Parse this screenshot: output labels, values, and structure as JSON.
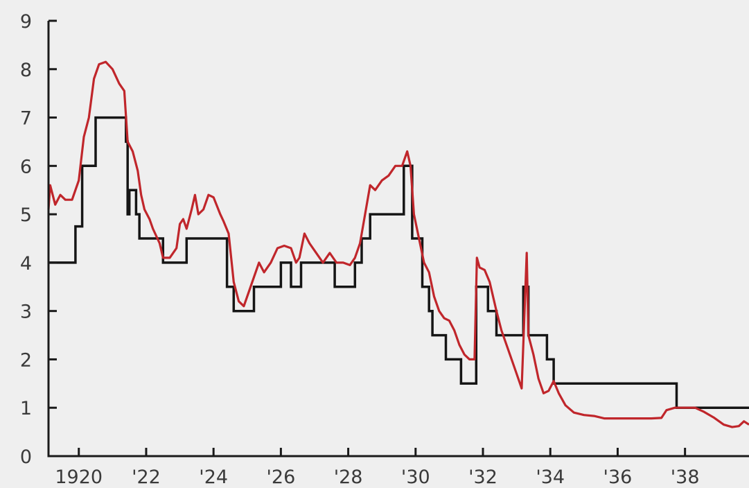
{
  "colors": {
    "background": "#efefef",
    "axis": "#1a1a1a",
    "text": "#3a3a3a",
    "series_black": "#151515",
    "series_red": "#c0262b"
  },
  "chart_data": {
    "type": "line",
    "title": "",
    "xlabel": "",
    "ylabel": "",
    "xlim": [
      1919.1,
      1939.9
    ],
    "ylim": [
      0,
      9
    ],
    "grid": false,
    "legend": "none",
    "x_tick_labels": [
      {
        "x": 1920,
        "label": "1920"
      },
      {
        "x": 1922,
        "label": "'22"
      },
      {
        "x": 1924,
        "label": "'24"
      },
      {
        "x": 1926,
        "label": "'26"
      },
      {
        "x": 1928,
        "label": "'28"
      },
      {
        "x": 1930,
        "label": "'30"
      },
      {
        "x": 1932,
        "label": "'32"
      },
      {
        "x": 1934,
        "label": "'34"
      },
      {
        "x": 1936,
        "label": "'36"
      },
      {
        "x": 1938,
        "label": "'38"
      }
    ],
    "y_tick_labels": [
      {
        "y": 0,
        "label": "0"
      },
      {
        "y": 1,
        "label": "1"
      },
      {
        "y": 2,
        "label": "2"
      },
      {
        "y": 3,
        "label": "3"
      },
      {
        "y": 4,
        "label": "4"
      },
      {
        "y": 5,
        "label": "5"
      },
      {
        "y": 6,
        "label": "6"
      },
      {
        "y": 7,
        "label": "7"
      },
      {
        "y": 8,
        "label": "8"
      },
      {
        "y": 9,
        "label": "9"
      }
    ],
    "series": [
      {
        "color": "#151515",
        "style": "step",
        "points": [
          [
            1919.1,
            4.0
          ],
          [
            1919.9,
            4.0
          ],
          [
            1919.9,
            4.75
          ],
          [
            1920.1,
            4.75
          ],
          [
            1920.1,
            6.0
          ],
          [
            1920.5,
            6.0
          ],
          [
            1920.5,
            7.0
          ],
          [
            1921.4,
            7.0
          ],
          [
            1921.4,
            6.5
          ],
          [
            1921.45,
            6.5
          ],
          [
            1921.45,
            5.0
          ],
          [
            1921.5,
            5.0
          ],
          [
            1921.5,
            5.5
          ],
          [
            1921.7,
            5.5
          ],
          [
            1921.7,
            5.0
          ],
          [
            1921.8,
            5.0
          ],
          [
            1921.8,
            4.5
          ],
          [
            1922.5,
            4.5
          ],
          [
            1922.5,
            4.0
          ],
          [
            1923.2,
            4.0
          ],
          [
            1923.2,
            4.5
          ],
          [
            1924.4,
            4.5
          ],
          [
            1924.4,
            3.5
          ],
          [
            1924.6,
            3.5
          ],
          [
            1924.6,
            3.0
          ],
          [
            1925.2,
            3.0
          ],
          [
            1925.2,
            3.5
          ],
          [
            1926.0,
            3.5
          ],
          [
            1926.0,
            4.0
          ],
          [
            1926.3,
            4.0
          ],
          [
            1926.3,
            3.5
          ],
          [
            1926.6,
            3.5
          ],
          [
            1926.6,
            4.0
          ],
          [
            1927.6,
            4.0
          ],
          [
            1927.6,
            3.5
          ],
          [
            1928.2,
            3.5
          ],
          [
            1928.2,
            4.0
          ],
          [
            1928.4,
            4.0
          ],
          [
            1928.4,
            4.5
          ],
          [
            1928.65,
            4.5
          ],
          [
            1928.65,
            5.0
          ],
          [
            1929.65,
            5.0
          ],
          [
            1929.65,
            6.0
          ],
          [
            1929.9,
            6.0
          ],
          [
            1929.9,
            4.5
          ],
          [
            1930.2,
            4.5
          ],
          [
            1930.2,
            3.5
          ],
          [
            1930.4,
            3.5
          ],
          [
            1930.4,
            3.0
          ],
          [
            1930.5,
            3.0
          ],
          [
            1930.5,
            2.5
          ],
          [
            1930.9,
            2.5
          ],
          [
            1930.9,
            2.0
          ],
          [
            1931.35,
            2.0
          ],
          [
            1931.35,
            1.5
          ],
          [
            1931.8,
            1.5
          ],
          [
            1931.8,
            3.5
          ],
          [
            1932.15,
            3.5
          ],
          [
            1932.15,
            3.0
          ],
          [
            1932.4,
            3.0
          ],
          [
            1932.4,
            2.5
          ],
          [
            1933.2,
            2.5
          ],
          [
            1933.2,
            3.5
          ],
          [
            1933.35,
            3.5
          ],
          [
            1933.35,
            2.5
          ],
          [
            1933.9,
            2.5
          ],
          [
            1933.9,
            2.0
          ],
          [
            1934.1,
            2.0
          ],
          [
            1934.1,
            1.5
          ],
          [
            1937.75,
            1.5
          ],
          [
            1937.75,
            1.0
          ],
          [
            1939.9,
            1.0
          ]
        ]
      },
      {
        "color": "#c0262b",
        "style": "line",
        "points": [
          [
            1919.1,
            5.1
          ],
          [
            1919.15,
            5.6
          ],
          [
            1919.3,
            5.2
          ],
          [
            1919.45,
            5.4
          ],
          [
            1919.6,
            5.3
          ],
          [
            1919.8,
            5.3
          ],
          [
            1920.0,
            5.7
          ],
          [
            1920.15,
            6.6
          ],
          [
            1920.3,
            7.0
          ],
          [
            1920.45,
            7.8
          ],
          [
            1920.6,
            8.1
          ],
          [
            1920.8,
            8.15
          ],
          [
            1921.0,
            8.0
          ],
          [
            1921.2,
            7.7
          ],
          [
            1921.35,
            7.55
          ],
          [
            1921.45,
            6.5
          ],
          [
            1921.6,
            6.3
          ],
          [
            1921.75,
            5.9
          ],
          [
            1921.85,
            5.4
          ],
          [
            1921.95,
            5.1
          ],
          [
            1922.1,
            4.9
          ],
          [
            1922.2,
            4.7
          ],
          [
            1922.4,
            4.4
          ],
          [
            1922.5,
            4.1
          ],
          [
            1922.7,
            4.1
          ],
          [
            1922.9,
            4.3
          ],
          [
            1923.0,
            4.8
          ],
          [
            1923.1,
            4.9
          ],
          [
            1923.2,
            4.7
          ],
          [
            1923.35,
            5.1
          ],
          [
            1923.45,
            5.4
          ],
          [
            1923.55,
            5.0
          ],
          [
            1923.7,
            5.1
          ],
          [
            1923.85,
            5.4
          ],
          [
            1924.0,
            5.35
          ],
          [
            1924.2,
            5.0
          ],
          [
            1924.3,
            4.85
          ],
          [
            1924.45,
            4.6
          ],
          [
            1924.6,
            3.6
          ],
          [
            1924.75,
            3.2
          ],
          [
            1924.9,
            3.1
          ],
          [
            1925.05,
            3.4
          ],
          [
            1925.2,
            3.7
          ],
          [
            1925.35,
            4.0
          ],
          [
            1925.5,
            3.8
          ],
          [
            1925.7,
            4.0
          ],
          [
            1925.9,
            4.3
          ],
          [
            1926.1,
            4.35
          ],
          [
            1926.3,
            4.3
          ],
          [
            1926.45,
            4.0
          ],
          [
            1926.55,
            4.1
          ],
          [
            1926.7,
            4.6
          ],
          [
            1926.85,
            4.4
          ],
          [
            1927.05,
            4.2
          ],
          [
            1927.25,
            4.0
          ],
          [
            1927.45,
            4.2
          ],
          [
            1927.65,
            4.0
          ],
          [
            1927.85,
            4.0
          ],
          [
            1928.05,
            3.95
          ],
          [
            1928.2,
            4.1
          ],
          [
            1928.35,
            4.4
          ],
          [
            1928.5,
            5.0
          ],
          [
            1928.65,
            5.6
          ],
          [
            1928.8,
            5.5
          ],
          [
            1929.0,
            5.7
          ],
          [
            1929.2,
            5.8
          ],
          [
            1929.4,
            6.0
          ],
          [
            1929.6,
            6.0
          ],
          [
            1929.75,
            6.3
          ],
          [
            1929.85,
            6.0
          ],
          [
            1929.95,
            5.0
          ],
          [
            1930.1,
            4.5
          ],
          [
            1930.25,
            4.0
          ],
          [
            1930.4,
            3.8
          ],
          [
            1930.55,
            3.3
          ],
          [
            1930.7,
            3.0
          ],
          [
            1930.85,
            2.85
          ],
          [
            1931.0,
            2.8
          ],
          [
            1931.15,
            2.6
          ],
          [
            1931.3,
            2.3
          ],
          [
            1931.45,
            2.1
          ],
          [
            1931.6,
            2.0
          ],
          [
            1931.75,
            2.0
          ],
          [
            1931.82,
            4.1
          ],
          [
            1931.9,
            3.9
          ],
          [
            1932.05,
            3.85
          ],
          [
            1932.2,
            3.6
          ],
          [
            1932.4,
            3.0
          ],
          [
            1932.55,
            2.6
          ],
          [
            1932.75,
            2.2
          ],
          [
            1932.9,
            1.9
          ],
          [
            1933.05,
            1.6
          ],
          [
            1933.15,
            1.4
          ],
          [
            1933.3,
            4.2
          ],
          [
            1933.35,
            2.5
          ],
          [
            1933.5,
            2.1
          ],
          [
            1933.65,
            1.6
          ],
          [
            1933.8,
            1.3
          ],
          [
            1933.95,
            1.35
          ],
          [
            1934.1,
            1.55
          ],
          [
            1934.25,
            1.3
          ],
          [
            1934.45,
            1.05
          ],
          [
            1934.7,
            0.9
          ],
          [
            1935.0,
            0.85
          ],
          [
            1935.3,
            0.83
          ],
          [
            1935.6,
            0.78
          ],
          [
            1936.0,
            0.78
          ],
          [
            1936.5,
            0.78
          ],
          [
            1937.0,
            0.78
          ],
          [
            1937.3,
            0.79
          ],
          [
            1937.45,
            0.95
          ],
          [
            1937.7,
            1.0
          ],
          [
            1938.0,
            1.0
          ],
          [
            1938.3,
            1.0
          ],
          [
            1938.55,
            0.92
          ],
          [
            1938.85,
            0.8
          ],
          [
            1939.15,
            0.65
          ],
          [
            1939.4,
            0.6
          ],
          [
            1939.6,
            0.62
          ],
          [
            1939.75,
            0.72
          ],
          [
            1939.9,
            0.65
          ]
        ]
      }
    ]
  }
}
